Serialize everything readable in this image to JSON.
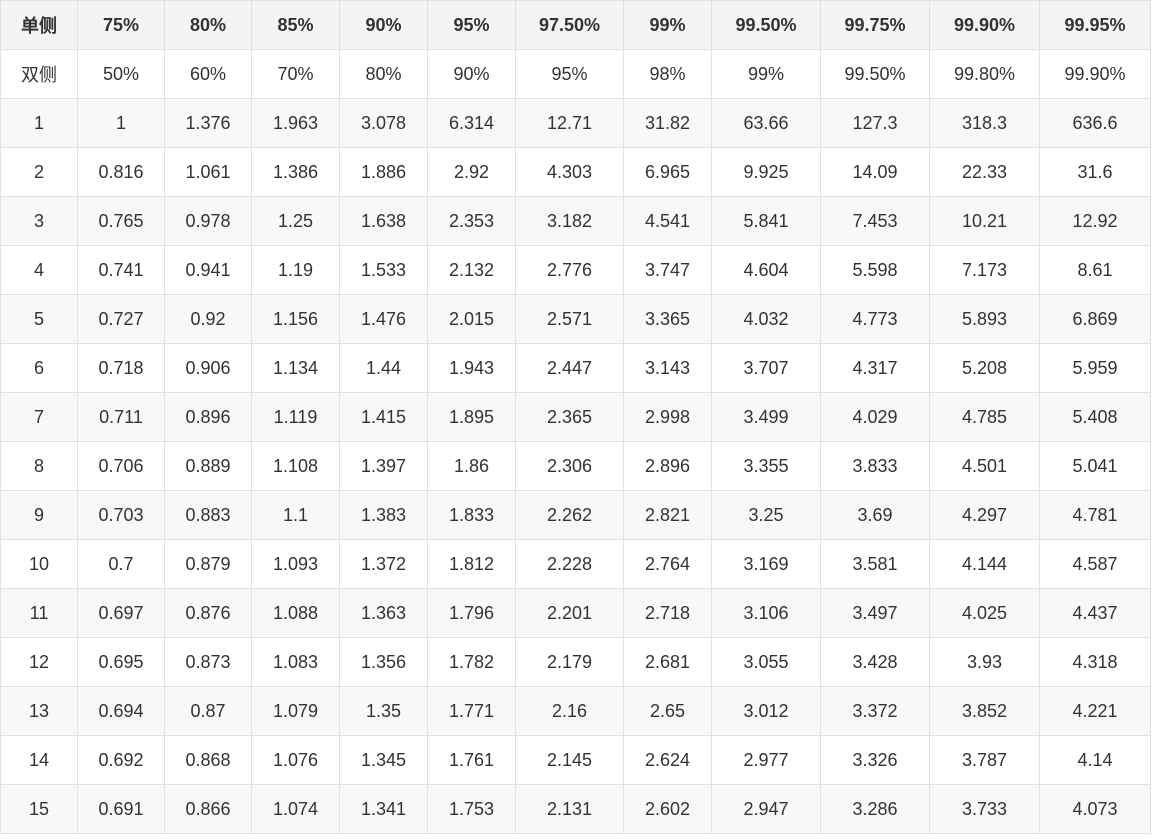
{
  "table": {
    "headers": [
      "单侧",
      "75%",
      "80%",
      "85%",
      "90%",
      "95%",
      "97.50%",
      "99%",
      "99.50%",
      "99.75%",
      "99.90%",
      "99.95%"
    ],
    "rows": [
      [
        "双侧",
        "50%",
        "60%",
        "70%",
        "80%",
        "90%",
        "95%",
        "98%",
        "99%",
        "99.50%",
        "99.80%",
        "99.90%"
      ],
      [
        "1",
        "1",
        "1.376",
        "1.963",
        "3.078",
        "6.314",
        "12.71",
        "31.82",
        "63.66",
        "127.3",
        "318.3",
        "636.6"
      ],
      [
        "2",
        "0.816",
        "1.061",
        "1.386",
        "1.886",
        "2.92",
        "4.303",
        "6.965",
        "9.925",
        "14.09",
        "22.33",
        "31.6"
      ],
      [
        "3",
        "0.765",
        "0.978",
        "1.25",
        "1.638",
        "2.353",
        "3.182",
        "4.541",
        "5.841",
        "7.453",
        "10.21",
        "12.92"
      ],
      [
        "4",
        "0.741",
        "0.941",
        "1.19",
        "1.533",
        "2.132",
        "2.776",
        "3.747",
        "4.604",
        "5.598",
        "7.173",
        "8.61"
      ],
      [
        "5",
        "0.727",
        "0.92",
        "1.156",
        "1.476",
        "2.015",
        "2.571",
        "3.365",
        "4.032",
        "4.773",
        "5.893",
        "6.869"
      ],
      [
        "6",
        "0.718",
        "0.906",
        "1.134",
        "1.44",
        "1.943",
        "2.447",
        "3.143",
        "3.707",
        "4.317",
        "5.208",
        "5.959"
      ],
      [
        "7",
        "0.711",
        "0.896",
        "1.119",
        "1.415",
        "1.895",
        "2.365",
        "2.998",
        "3.499",
        "4.029",
        "4.785",
        "5.408"
      ],
      [
        "8",
        "0.706",
        "0.889",
        "1.108",
        "1.397",
        "1.86",
        "2.306",
        "2.896",
        "3.355",
        "3.833",
        "4.501",
        "5.041"
      ],
      [
        "9",
        "0.703",
        "0.883",
        "1.1",
        "1.383",
        "1.833",
        "2.262",
        "2.821",
        "3.25",
        "3.69",
        "4.297",
        "4.781"
      ],
      [
        "10",
        "0.7",
        "0.879",
        "1.093",
        "1.372",
        "1.812",
        "2.228",
        "2.764",
        "3.169",
        "3.581",
        "4.144",
        "4.587"
      ],
      [
        "11",
        "0.697",
        "0.876",
        "1.088",
        "1.363",
        "1.796",
        "2.201",
        "2.718",
        "3.106",
        "3.497",
        "4.025",
        "4.437"
      ],
      [
        "12",
        "0.695",
        "0.873",
        "1.083",
        "1.356",
        "1.782",
        "2.179",
        "2.681",
        "3.055",
        "3.428",
        "3.93",
        "4.318"
      ],
      [
        "13",
        "0.694",
        "0.87",
        "1.079",
        "1.35",
        "1.771",
        "2.16",
        "2.65",
        "3.012",
        "3.372",
        "3.852",
        "4.221"
      ],
      [
        "14",
        "0.692",
        "0.868",
        "1.076",
        "1.345",
        "1.761",
        "2.145",
        "2.624",
        "2.977",
        "3.326",
        "3.787",
        "4.14"
      ],
      [
        "15",
        "0.691",
        "0.866",
        "1.074",
        "1.341",
        "1.753",
        "2.131",
        "2.602",
        "2.947",
        "3.286",
        "3.733",
        "4.073"
      ]
    ]
  }
}
